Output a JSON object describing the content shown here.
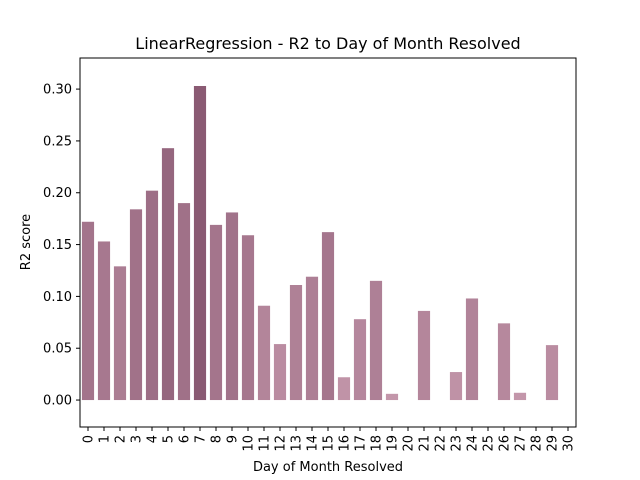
{
  "chart_data": {
    "type": "bar",
    "title": "LinearRegression - R2 to Day of Month Resolved",
    "xlabel": "Day of Month Resolved",
    "ylabel": "R2 score",
    "ylim": [
      -0.026,
      0.33
    ],
    "yticks": [
      "0.00",
      "0.05",
      "0.10",
      "0.15",
      "0.20",
      "0.25",
      "0.30"
    ],
    "categories": [
      "0",
      "1",
      "2",
      "3",
      "4",
      "5",
      "6",
      "7",
      "8",
      "9",
      "10",
      "11",
      "12",
      "13",
      "14",
      "15",
      "16",
      "17",
      "18",
      "19",
      "20",
      "21",
      "22",
      "23",
      "24",
      "25",
      "26",
      "27",
      "28",
      "29",
      "30"
    ],
    "values": [
      0.172,
      0.153,
      0.129,
      0.184,
      0.202,
      0.243,
      0.19,
      0.303,
      0.169,
      0.181,
      0.159,
      0.091,
      0.054,
      0.111,
      0.119,
      0.162,
      0.022,
      0.078,
      0.115,
      0.006,
      0.0,
      0.086,
      0.0,
      0.027,
      0.098,
      0.0,
      0.074,
      0.007,
      0.0,
      0.053,
      0.0
    ],
    "grid": false,
    "legend": "none",
    "color_dark": "#8a5a73",
    "color_light": "#c497ab"
  }
}
